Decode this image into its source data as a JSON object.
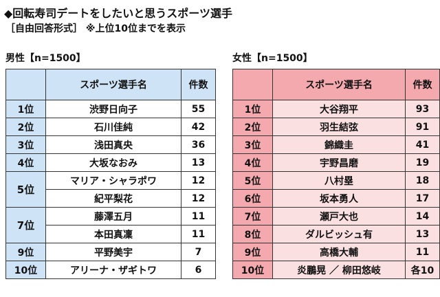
{
  "title": "◆回転寿司デートをしたいと思うスポーツ選手",
  "subtitle": "［自由回答形式］ ※上位10位までを表示",
  "male": {
    "heading": "男性【n=1500】",
    "col_player": "スポーツ選手名",
    "col_count": "件数",
    "rows": [
      {
        "rank": "1位",
        "name": "渋野日向子",
        "count": "55"
      },
      {
        "rank": "2位",
        "name": "石川佳純",
        "count": "42"
      },
      {
        "rank": "3位",
        "name": "浅田真央",
        "count": "36"
      },
      {
        "rank": "4位",
        "name": "大坂なおみ",
        "count": "13"
      },
      {
        "rank": "5位",
        "name": "マリア・シャラポワ",
        "count": "12"
      },
      {
        "rank": "",
        "name": "紀平梨花",
        "count": "12"
      },
      {
        "rank": "7位",
        "name": "藤澤五月",
        "count": "11"
      },
      {
        "rank": "",
        "name": "本田真凜",
        "count": "11"
      },
      {
        "rank": "9位",
        "name": "平野美宇",
        "count": "7"
      },
      {
        "rank": "10位",
        "name": "アリーナ・ザギトワ",
        "count": "6"
      }
    ]
  },
  "female": {
    "heading": "女性【n=1500】",
    "col_player": "スポーツ選手名",
    "col_count": "件数",
    "rows": [
      {
        "rank": "1位",
        "name": "大谷翔平",
        "count": "93"
      },
      {
        "rank": "2位",
        "name": "羽生結弦",
        "count": "91"
      },
      {
        "rank": "3位",
        "name": "錦織圭",
        "count": "41"
      },
      {
        "rank": "4位",
        "name": "宇野昌磨",
        "count": "19"
      },
      {
        "rank": "5位",
        "name": "八村塁",
        "count": "18"
      },
      {
        "rank": "6位",
        "name": "坂本勇人",
        "count": "17"
      },
      {
        "rank": "7位",
        "name": "瀬戸大也",
        "count": "14"
      },
      {
        "rank": "8位",
        "name": "ダルビッシュ有",
        "count": "13"
      },
      {
        "rank": "9位",
        "name": "高橋大輔",
        "count": "11"
      },
      {
        "rank": "10位",
        "name": "炎鵬晃 ／ 柳田悠岐",
        "count": "各10"
      }
    ]
  },
  "colors": {
    "male_header": "#cfe3f6",
    "female_header": "#f3a9ae",
    "female_cell": "#fbe0e2"
  }
}
